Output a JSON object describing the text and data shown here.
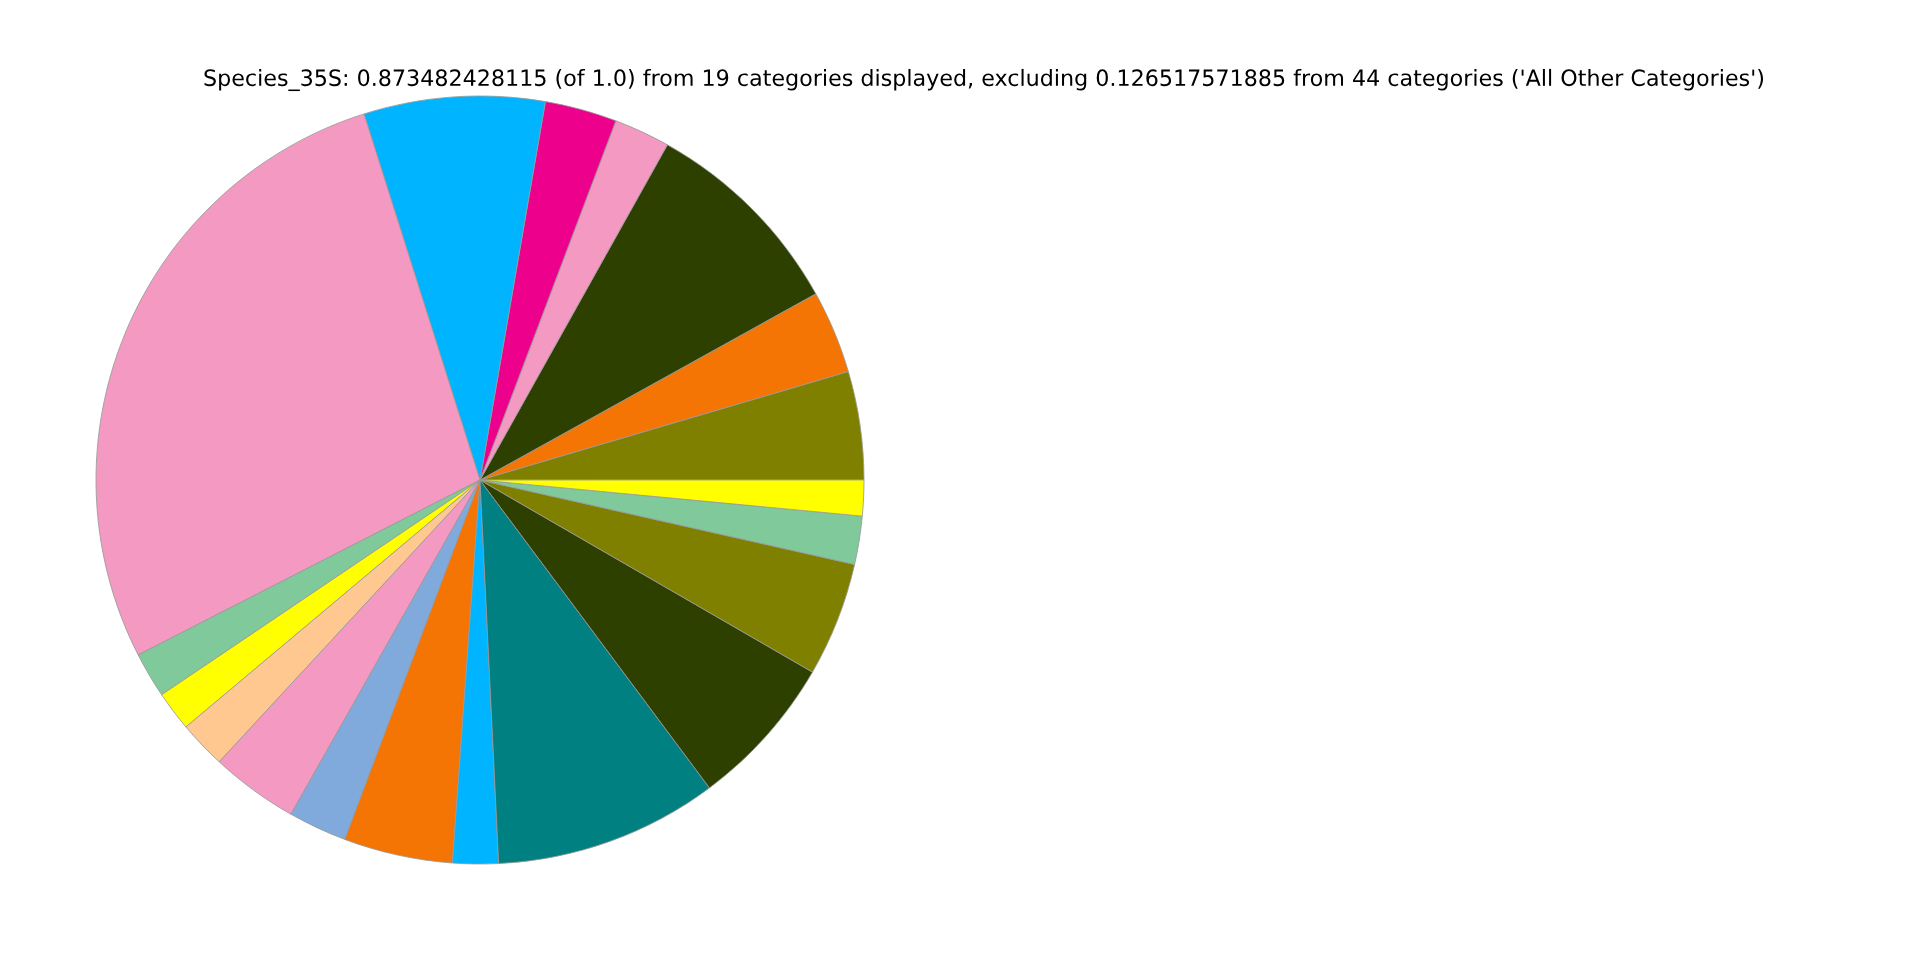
{
  "chart_data": {
    "type": "pie",
    "title": "Species_35S: 0.873482428115 (of 1.0) from 19 categories displayed, excluding 0.126517571885 from 44 categories ('All Other Categories')",
    "categories": [
      null,
      null,
      null,
      null,
      null,
      null,
      null,
      null,
      null,
      null,
      null,
      null,
      null,
      null,
      null,
      null,
      null,
      null,
      null
    ],
    "values": [
      4.56,
      3.5,
      8.83,
      2.36,
      3.03,
      7.61,
      27.65,
      1.92,
      1.67,
      2.0,
      3.69,
      2.47,
      4.58,
      1.92,
      9.42,
      6.47,
      4.81,
      2.03,
      1.5
    ],
    "colors": [
      "#808000",
      "#f47404",
      "#2d4000",
      "#f49ac2",
      "#ec008c",
      "#00b4ff",
      "#f49ac2",
      "#80c99b",
      "#ffff00",
      "#ffc890",
      "#f49ac2",
      "#80aadc",
      "#f47404",
      "#00b4ff",
      "#008080",
      "#2d4000",
      "#808000",
      "#80c99b",
      "#ffff00"
    ]
  }
}
